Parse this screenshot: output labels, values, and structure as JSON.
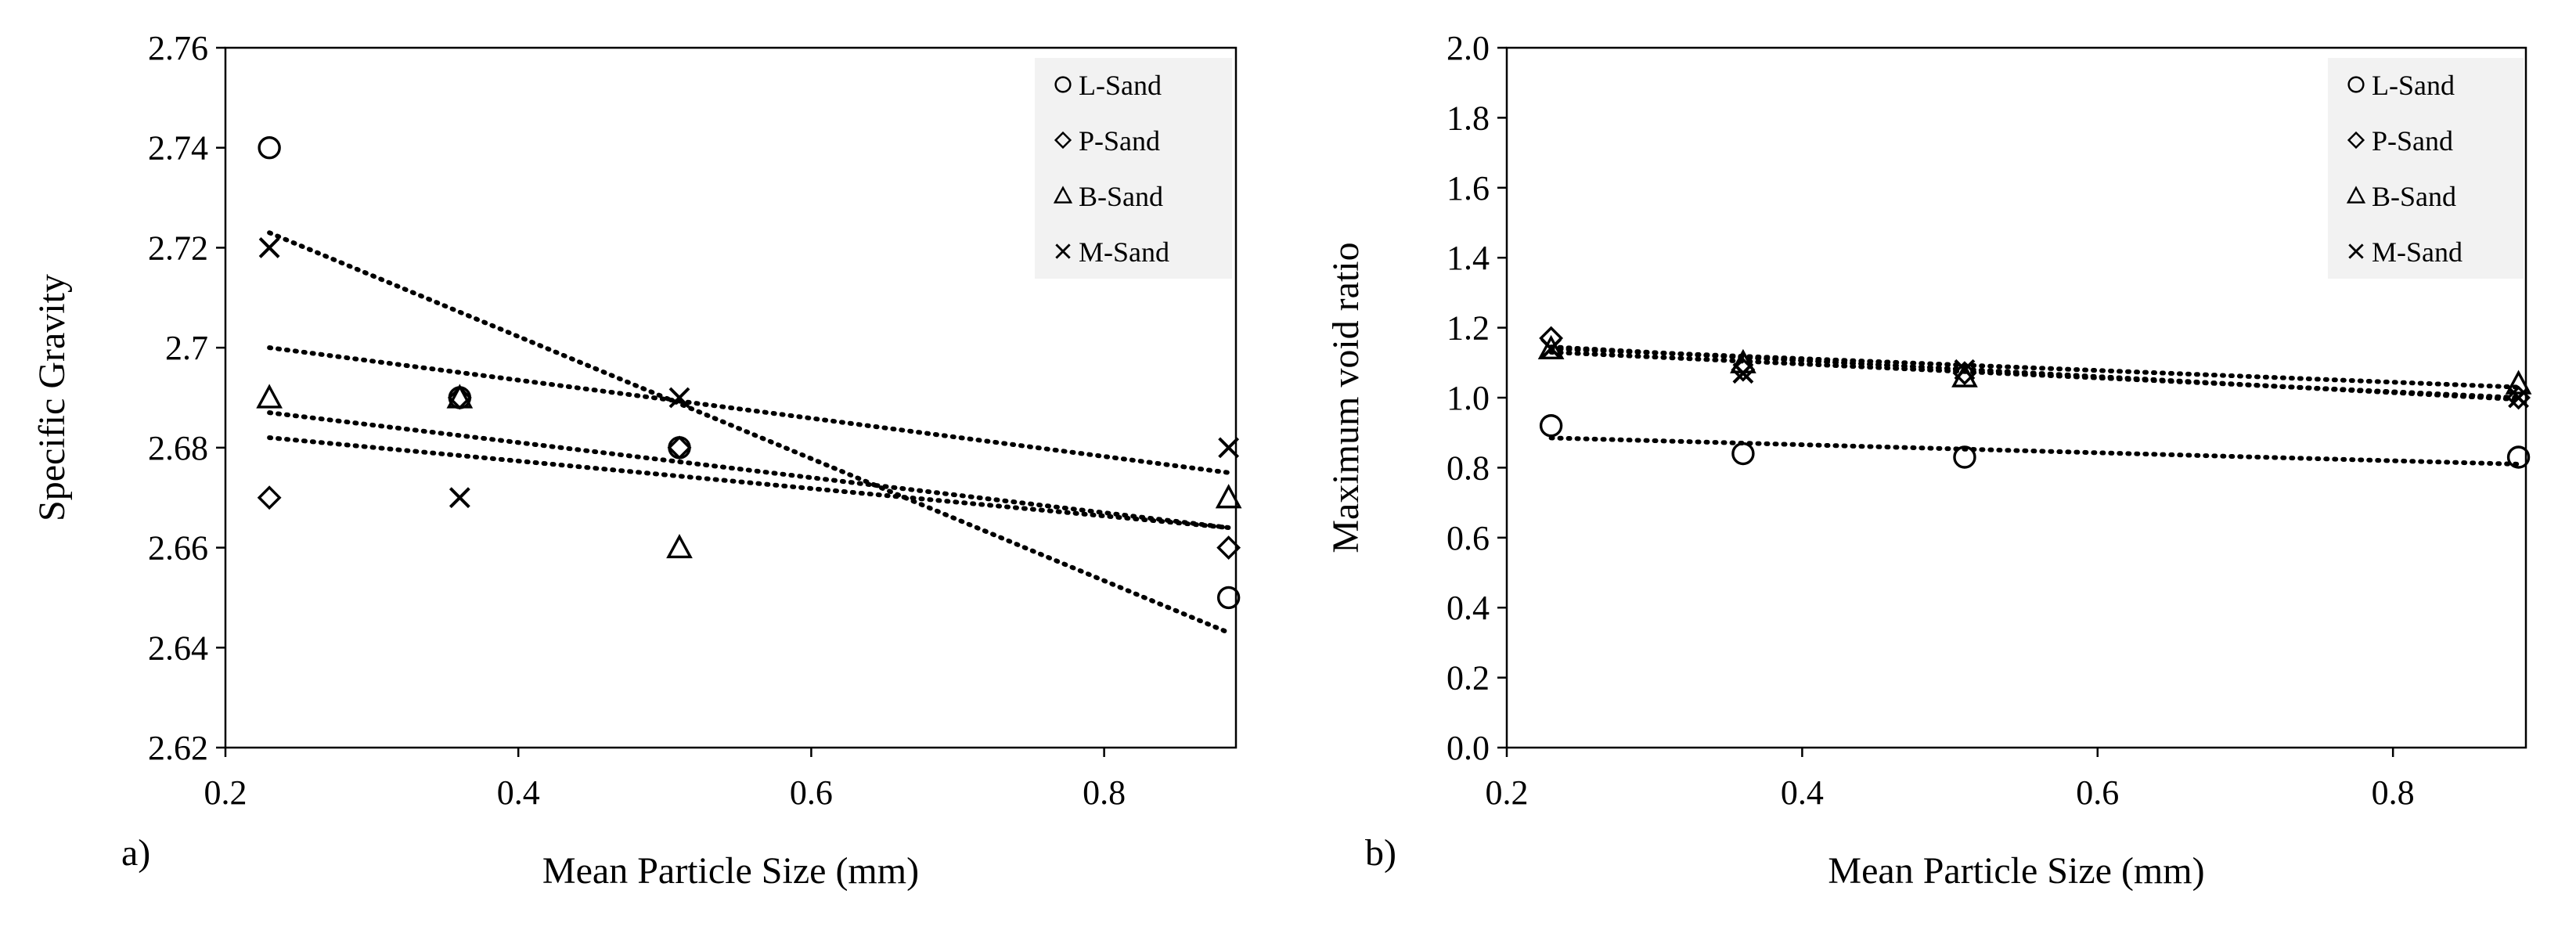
{
  "chart_data": [
    {
      "type": "scatter",
      "panel_label": "a)",
      "xlabel": "Mean Particle Size (mm)",
      "ylabel": "Specific Gravity",
      "xlim": [
        0.2,
        0.89
      ],
      "ylim": [
        2.62,
        2.76
      ],
      "x_ticks": [
        0.2,
        0.4,
        0.6,
        0.8
      ],
      "x_tick_labels": [
        "0.2",
        "0.4",
        "0.6",
        "0.8"
      ],
      "y_ticks": [
        2.62,
        2.64,
        2.66,
        2.68,
        2.7,
        2.72,
        2.74,
        2.76
      ],
      "y_tick_labels": [
        "2.62",
        "2.64",
        "2.66",
        "2.68",
        "2.7",
        "2.72",
        "2.74",
        "2.76"
      ],
      "legend_position": "top-right",
      "series": [
        {
          "name": "L-Sand",
          "marker": "circle",
          "x": [
            0.23,
            0.36,
            0.51,
            0.885
          ],
          "y": [
            2.74,
            2.69,
            2.68,
            2.65
          ],
          "trendline": {
            "x": [
              0.23,
              0.885
            ],
            "y": [
              2.723,
              2.643
            ]
          }
        },
        {
          "name": "P-Sand",
          "marker": "diamond",
          "x": [
            0.23,
            0.36,
            0.51,
            0.885
          ],
          "y": [
            2.67,
            2.69,
            2.68,
            2.66
          ],
          "trendline": {
            "x": [
              0.23,
              0.885
            ],
            "y": [
              2.682,
              2.664
            ]
          }
        },
        {
          "name": "B-Sand",
          "marker": "triangle",
          "x": [
            0.23,
            0.36,
            0.51,
            0.885
          ],
          "y": [
            2.69,
            2.69,
            2.66,
            2.67
          ],
          "trendline": {
            "x": [
              0.23,
              0.885
            ],
            "y": [
              2.687,
              2.664
            ]
          }
        },
        {
          "name": "M-Sand",
          "marker": "x",
          "x": [
            0.23,
            0.36,
            0.51,
            0.885
          ],
          "y": [
            2.72,
            2.67,
            2.69,
            2.68
          ],
          "trendline": {
            "x": [
              0.23,
              0.885
            ],
            "y": [
              2.7,
              2.675
            ]
          }
        }
      ]
    },
    {
      "type": "scatter",
      "panel_label": "b)",
      "xlabel": "Mean Particle Size (mm)",
      "ylabel": "Maximum void ratio",
      "xlim": [
        0.2,
        0.89
      ],
      "ylim": [
        0.0,
        2.0
      ],
      "x_ticks": [
        0.2,
        0.4,
        0.6,
        0.8
      ],
      "x_tick_labels": [
        "0.2",
        "0.4",
        "0.6",
        "0.8"
      ],
      "y_ticks": [
        0.0,
        0.2,
        0.4,
        0.6,
        0.8,
        1.0,
        1.2,
        1.4,
        1.6,
        1.8,
        2.0
      ],
      "y_tick_labels": [
        "0.0",
        "0.2",
        "0.4",
        "0.6",
        "0.8",
        "1.0",
        "1.2",
        "1.4",
        "1.6",
        "1.8",
        "2.0"
      ],
      "legend_position": "top-right",
      "series": [
        {
          "name": "L-Sand",
          "marker": "circle",
          "x": [
            0.23,
            0.36,
            0.51,
            0.885
          ],
          "y": [
            0.92,
            0.84,
            0.83,
            0.83
          ],
          "trendline": {
            "x": [
              0.23,
              0.885
            ],
            "y": [
              0.885,
              0.81
            ]
          }
        },
        {
          "name": "P-Sand",
          "marker": "diamond",
          "x": [
            0.23,
            0.36,
            0.51,
            0.885
          ],
          "y": [
            1.17,
            1.08,
            1.07,
            1.0
          ],
          "trendline": {
            "x": [
              0.23,
              0.885
            ],
            "y": [
              1.145,
              0.995
            ]
          }
        },
        {
          "name": "B-Sand",
          "marker": "triangle",
          "x": [
            0.23,
            0.36,
            0.51,
            0.885
          ],
          "y": [
            1.14,
            1.1,
            1.06,
            1.04
          ],
          "trendline": {
            "x": [
              0.23,
              0.885
            ],
            "y": [
              1.14,
              1.03
            ]
          }
        },
        {
          "name": "M-Sand",
          "marker": "x",
          "x": [
            0.23,
            0.36,
            0.51,
            0.885
          ],
          "y": [
            1.14,
            1.07,
            1.08,
            1.0
          ],
          "trendline": {
            "x": [
              0.23,
              0.885
            ],
            "y": [
              1.13,
              1.0
            ]
          }
        }
      ]
    }
  ]
}
